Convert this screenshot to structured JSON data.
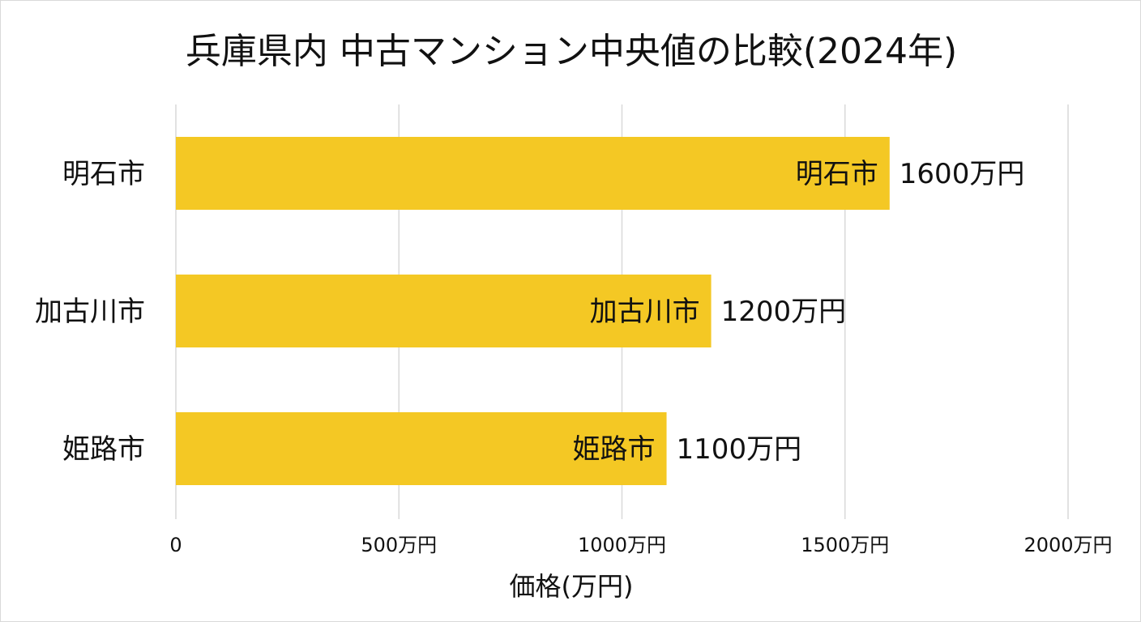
{
  "chart_data": {
    "type": "bar",
    "orientation": "horizontal",
    "title": "兵庫県内 中古マンション中央値の比較(2024年)",
    "xlabel": "価格(万円)",
    "ylabel": "",
    "categories": [
      "明石市",
      "加古川市",
      "姫路市"
    ],
    "values": [
      1600,
      1200,
      1100
    ],
    "value_labels": [
      "1600万円",
      "1200万円",
      "1100万円"
    ],
    "xlim": [
      0,
      2000
    ],
    "x_ticks": [
      0,
      500,
      1000,
      1500,
      2000
    ],
    "x_tick_labels": [
      "0",
      "500万円",
      "1000万円",
      "1500万円",
      "2000万円"
    ],
    "grid": true,
    "legend": "none",
    "bar_color": "#f4c824"
  }
}
